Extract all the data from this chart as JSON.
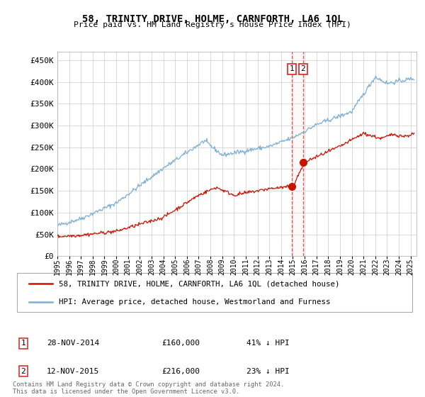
{
  "title": "58, TRINITY DRIVE, HOLME, CARNFORTH, LA6 1QL",
  "subtitle": "Price paid vs. HM Land Registry's House Price Index (HPI)",
  "ylabel_ticks": [
    "£0",
    "£50K",
    "£100K",
    "£150K",
    "£200K",
    "£250K",
    "£300K",
    "£350K",
    "£400K",
    "£450K"
  ],
  "ytick_values": [
    0,
    50000,
    100000,
    150000,
    200000,
    250000,
    300000,
    350000,
    400000,
    450000
  ],
  "ylim": [
    0,
    470000
  ],
  "xlim_start": 1995.0,
  "xlim_end": 2025.5,
  "xticks": [
    1995,
    1996,
    1997,
    1998,
    1999,
    2000,
    2001,
    2002,
    2003,
    2004,
    2005,
    2006,
    2007,
    2008,
    2009,
    2010,
    2011,
    2012,
    2013,
    2014,
    2015,
    2016,
    2017,
    2018,
    2019,
    2020,
    2021,
    2022,
    2023,
    2024,
    2025
  ],
  "hpi_color": "#7bafd4",
  "price_color": "#cc1100",
  "vline_color": "#dd3333",
  "vline_fill": "#ffdddd",
  "marker1_x": 2014.91,
  "marker2_x": 2015.87,
  "marker1_y": 160000,
  "marker2_y": 216000,
  "legend_label_price": "58, TRINITY DRIVE, HOLME, CARNFORTH, LA6 1QL (detached house)",
  "legend_label_hpi": "HPI: Average price, detached house, Westmorland and Furness",
  "table_rows": [
    {
      "num": "1",
      "date": "28-NOV-2014",
      "price": "£160,000",
      "pct": "41% ↓ HPI"
    },
    {
      "num": "2",
      "date": "12-NOV-2015",
      "price": "£216,000",
      "pct": "23% ↓ HPI"
    }
  ],
  "footnote": "Contains HM Land Registry data © Crown copyright and database right 2024.\nThis data is licensed under the Open Government Licence v3.0.",
  "background_color": "#ffffff",
  "grid_color": "#cccccc"
}
